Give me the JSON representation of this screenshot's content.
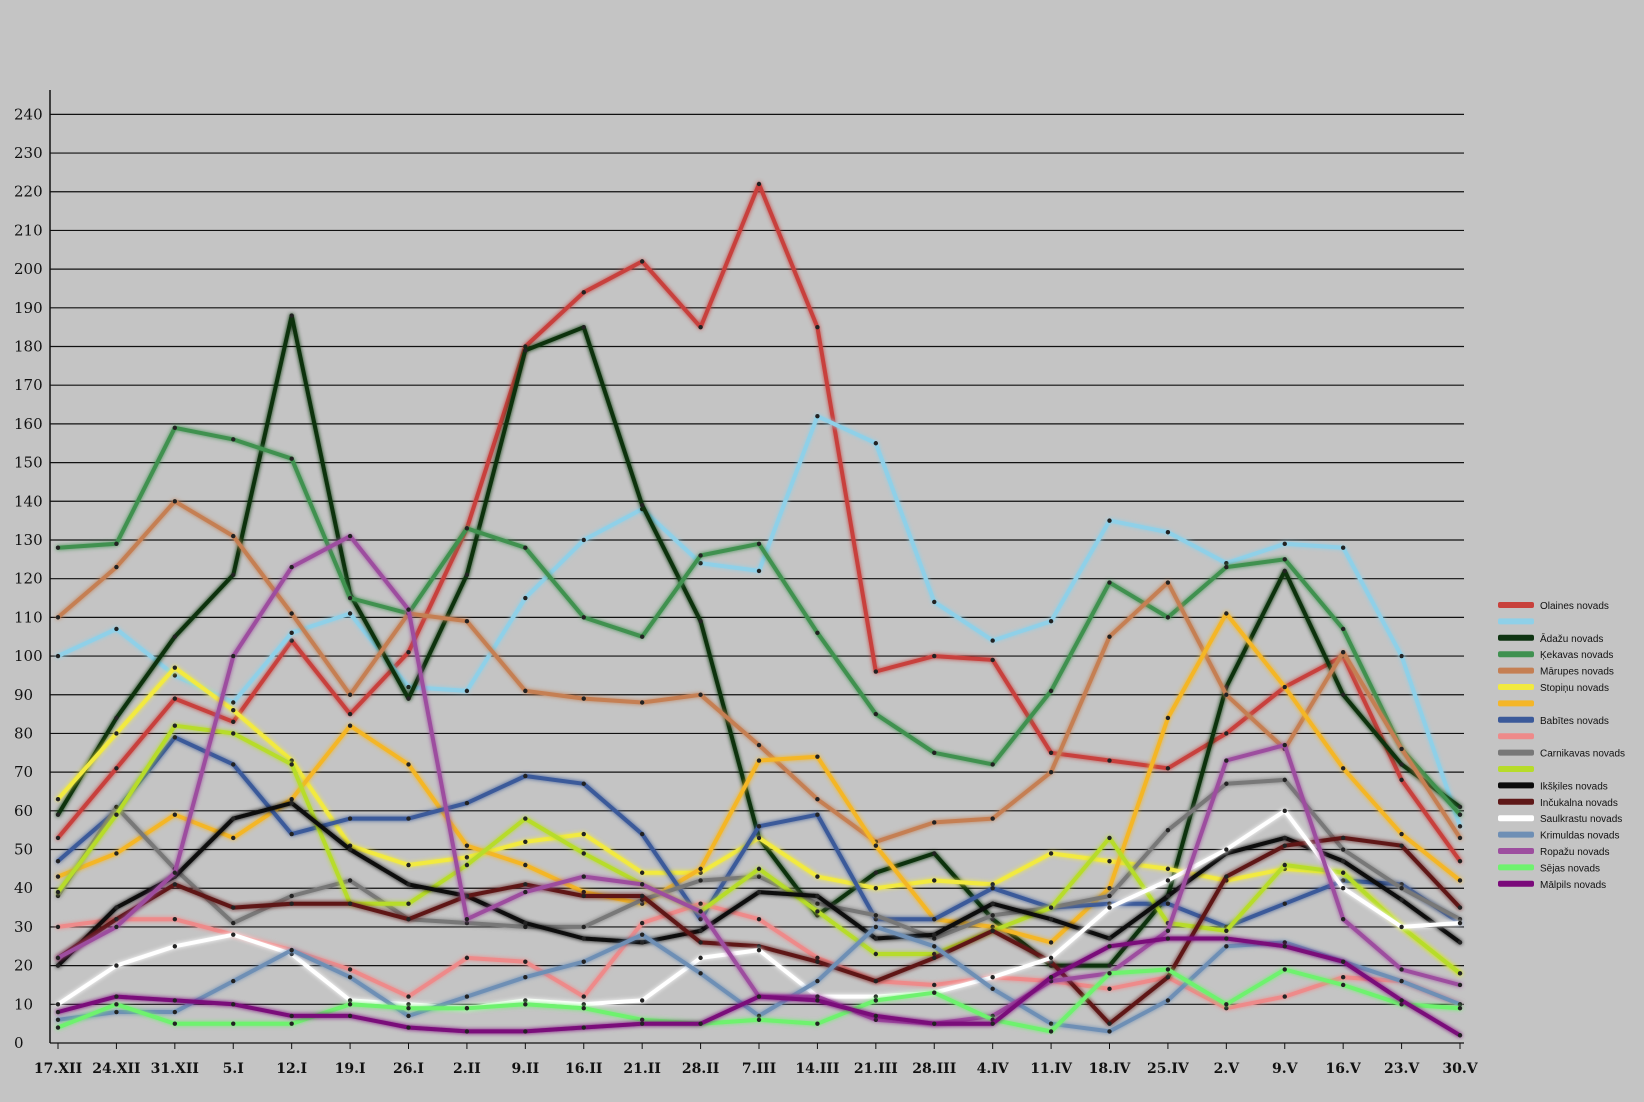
{
  "chart_data": {
    "type": "line",
    "title": "",
    "xlabel": "",
    "ylabel": "",
    "ylim": [
      0,
      245
    ],
    "x": [
      "17.XII",
      "24.XII",
      "31.XII",
      "5.I",
      "12.I",
      "19.I",
      "26.I",
      "2.II",
      "9.II",
      "16.II",
      "21.II",
      "28.II",
      "7.III",
      "14.III",
      "21.III",
      "28.III",
      "4.IV",
      "11.IV",
      "18.IV",
      "25.IV",
      "2.V",
      "9.V",
      "16.V",
      "23.V",
      "30.V"
    ],
    "y_ticks": [
      0,
      10,
      20,
      30,
      40,
      50,
      60,
      70,
      80,
      90,
      100,
      110,
      120,
      130,
      140,
      150,
      160,
      170,
      180,
      190,
      200,
      210,
      220,
      230,
      240
    ],
    "legend_position": "right",
    "series": [
      {
        "name": "Olaines novads",
        "color": "#c8413c",
        "values": [
          53,
          71,
          89,
          83,
          104,
          85,
          101,
          133,
          180,
          194,
          202,
          185,
          222,
          185,
          96,
          100,
          99,
          75,
          73,
          71,
          80,
          92,
          100,
          68,
          47
        ]
      },
      {
        "name": "",
        "color": "#8fd0e8",
        "values": [
          100,
          107,
          95,
          88,
          106,
          111,
          92,
          91,
          115,
          130,
          138,
          124,
          122,
          162,
          155,
          114,
          104,
          109,
          135,
          132,
          124,
          129,
          128,
          100,
          56
        ]
      },
      {
        "name": "Ādažu novads",
        "color": "#0e3311",
        "values": [
          59,
          84,
          105,
          121,
          188,
          116,
          89,
          121,
          179,
          185,
          139,
          109,
          53,
          33,
          44,
          49,
          32,
          20,
          20,
          38,
          92,
          122,
          90,
          72,
          61
        ]
      },
      {
        "name": "Ķekavas novads",
        "color": "#3f9150",
        "values": [
          128,
          129,
          159,
          156,
          151,
          115,
          111,
          133,
          128,
          110,
          105,
          126,
          129,
          106,
          85,
          75,
          72,
          91,
          119,
          110,
          123,
          125,
          107,
          76,
          59
        ]
      },
      {
        "name": "Mārupes novads",
        "color": "#c57f53",
        "values": [
          110,
          123,
          140,
          131,
          111,
          90,
          111,
          109,
          91,
          89,
          88,
          90,
          77,
          63,
          52,
          57,
          58,
          70,
          105,
          119,
          90,
          76,
          101,
          76,
          53
        ]
      },
      {
        "name": "Stopiņu novads",
        "color": "#f2ea3f",
        "values": [
          63,
          80,
          97,
          86,
          73,
          51,
          46,
          48,
          52,
          54,
          44,
          44,
          53,
          43,
          40,
          42,
          41,
          49,
          47,
          45,
          42,
          45,
          44,
          30,
          18
        ]
      },
      {
        "name": "",
        "color": "#f4b628",
        "values": [
          43,
          49,
          59,
          53,
          63,
          82,
          72,
          51,
          46,
          39,
          36,
          45,
          73,
          74,
          51,
          32,
          30,
          26,
          40,
          84,
          111,
          92,
          71,
          54,
          42
        ]
      },
      {
        "name": "Babītes novads",
        "color": "#3b5a9a",
        "values": [
          47,
          60,
          79,
          72,
          54,
          58,
          58,
          62,
          69,
          67,
          54,
          32,
          56,
          59,
          32,
          32,
          40,
          35,
          36,
          36,
          30,
          36,
          42,
          41,
          31
        ]
      },
      {
        "name": "",
        "color": "#ee8a8a",
        "values": [
          30,
          32,
          32,
          28,
          24,
          19,
          12,
          22,
          21,
          12,
          31,
          36,
          32,
          22,
          16,
          15,
          17,
          16,
          14,
          17,
          9,
          12,
          17,
          16,
          10
        ]
      },
      {
        "name": "Carnikavas novads",
        "color": "#787878",
        "values": [
          38,
          61,
          45,
          31,
          38,
          42,
          32,
          31,
          30,
          30,
          37,
          42,
          43,
          36,
          33,
          27,
          33,
          35,
          38,
          55,
          67,
          68,
          50,
          40,
          32
        ]
      },
      {
        "name": "",
        "color": "#b7dc2a",
        "values": [
          39,
          59,
          82,
          80,
          72,
          36,
          36,
          46,
          58,
          49,
          41,
          34,
          45,
          34,
          23,
          23,
          29,
          35,
          53,
          31,
          29,
          46,
          44,
          30,
          18
        ]
      },
      {
        "name": "Ikšķiles novads",
        "color": "#0b0b0b",
        "values": [
          20,
          35,
          43,
          58,
          62,
          50,
          41,
          38,
          31,
          27,
          26,
          29,
          39,
          38,
          27,
          28,
          36,
          32,
          27,
          38,
          49,
          53,
          47,
          37,
          26
        ]
      },
      {
        "name": "Inčukalna novads",
        "color": "#5e1818",
        "values": [
          22,
          32,
          41,
          35,
          36,
          36,
          32,
          38,
          41,
          38,
          38,
          26,
          25,
          21,
          16,
          22,
          29,
          21,
          5,
          17,
          43,
          51,
          53,
          51,
          35
        ]
      },
      {
        "name": "Saulkrastu novads",
        "color": "#ffffff",
        "values": [
          10,
          20,
          25,
          28,
          23,
          11,
          10,
          9,
          11,
          10,
          11,
          22,
          24,
          12,
          12,
          13,
          17,
          22,
          35,
          42,
          50,
          60,
          40,
          30,
          31
        ]
      },
      {
        "name": "Krimuldas novads",
        "color": "#6e8fb5",
        "values": [
          6,
          8,
          8,
          16,
          24,
          17,
          7,
          12,
          17,
          21,
          28,
          18,
          7,
          16,
          30,
          25,
          14,
          5,
          3,
          11,
          25,
          26,
          21,
          16,
          10
        ]
      },
      {
        "name": "Ropažu novads",
        "color": "#9d4e9f",
        "values": [
          22,
          30,
          44,
          100,
          123,
          131,
          112,
          32,
          39,
          43,
          41,
          34,
          12,
          12,
          6,
          5,
          7,
          16,
          18,
          29,
          73,
          77,
          32,
          19,
          15
        ]
      },
      {
        "name": "Sējas novads",
        "color": "#6ef26e",
        "values": [
          4,
          10,
          5,
          5,
          5,
          10,
          9,
          9,
          10,
          9,
          6,
          5,
          6,
          5,
          11,
          13,
          6,
          3,
          18,
          19,
          10,
          19,
          15,
          10,
          9
        ]
      },
      {
        "name": "Mālpils novads",
        "color": "#7a0a7a",
        "values": [
          8,
          12,
          11,
          10,
          7,
          7,
          4,
          3,
          3,
          4,
          5,
          5,
          12,
          11,
          7,
          5,
          5,
          17,
          25,
          27,
          27,
          25,
          21,
          11,
          2
        ]
      }
    ]
  }
}
